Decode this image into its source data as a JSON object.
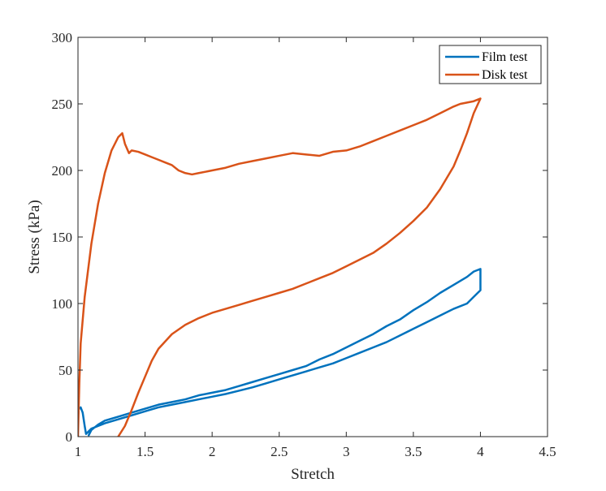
{
  "chart_data": {
    "type": "line",
    "title": "",
    "xlabel": "Stretch",
    "ylabel": "Stress (kPa)",
    "xlim": [
      1,
      4.5
    ],
    "ylim": [
      0,
      300
    ],
    "grid": false,
    "legend_position": "top-right",
    "xticks": [
      1,
      1.5,
      2,
      2.5,
      3,
      3.5,
      4,
      4.5
    ],
    "xtick_labels": [
      "1",
      "1.5",
      "2",
      "2.5",
      "3",
      "3.5",
      "4",
      "4.5"
    ],
    "yticks": [
      0,
      50,
      100,
      150,
      200,
      250,
      300
    ],
    "ytick_labels": [
      "0",
      "50",
      "100",
      "150",
      "200",
      "250",
      "300"
    ],
    "series": [
      {
        "name": "Film test",
        "color": "#0072BD",
        "x": [
          1.0,
          1.02,
          1.035,
          1.05,
          1.06,
          1.08,
          1.1,
          1.15,
          1.2,
          1.3,
          1.4,
          1.5,
          1.6,
          1.7,
          1.8,
          1.9,
          2.0,
          2.1,
          2.2,
          2.3,
          2.4,
          2.5,
          2.6,
          2.7,
          2.8,
          2.9,
          3.0,
          3.1,
          3.2,
          3.3,
          3.4,
          3.5,
          3.6,
          3.7,
          3.8,
          3.9,
          3.95,
          4.0,
          4.0,
          3.95,
          3.9,
          3.8,
          3.7,
          3.6,
          3.5,
          3.4,
          3.3,
          3.2,
          3.1,
          3.0,
          2.9,
          2.8,
          2.7,
          2.6,
          2.5,
          2.4,
          2.3,
          2.2,
          2.1,
          2.0,
          1.9,
          1.8,
          1.7,
          1.6,
          1.5,
          1.4,
          1.3,
          1.2,
          1.15,
          1.1,
          1.08
        ],
        "y": [
          20,
          22,
          18,
          8,
          2,
          4,
          6,
          8,
          10,
          13,
          16,
          19,
          22,
          24,
          26,
          28,
          30,
          32,
          34.5,
          37,
          40,
          43,
          46,
          49,
          52,
          55,
          59,
          63,
          67,
          71,
          76,
          81,
          86,
          91,
          96,
          100,
          105,
          110,
          126,
          124,
          120,
          114,
          108,
          101,
          95,
          88,
          83,
          77,
          72,
          67,
          62,
          58,
          53,
          50,
          47,
          44,
          41,
          38,
          35,
          33,
          31,
          28,
          26,
          24,
          21,
          18,
          15,
          12,
          9,
          5,
          1
        ]
      },
      {
        "name": "Disk test",
        "color": "#D95319",
        "x": [
          1.0,
          1.01,
          1.02,
          1.05,
          1.1,
          1.15,
          1.2,
          1.25,
          1.3,
          1.33,
          1.35,
          1.38,
          1.4,
          1.45,
          1.5,
          1.55,
          1.6,
          1.65,
          1.7,
          1.75,
          1.8,
          1.85,
          1.9,
          2.0,
          2.1,
          2.2,
          2.3,
          2.4,
          2.5,
          2.6,
          2.7,
          2.8,
          2.9,
          3.0,
          3.1,
          3.2,
          3.3,
          3.4,
          3.5,
          3.6,
          3.7,
          3.8,
          3.85,
          3.9,
          3.95,
          4.0,
          4.0,
          3.95,
          3.9,
          3.85,
          3.8,
          3.7,
          3.6,
          3.5,
          3.4,
          3.3,
          3.2,
          3.1,
          3.0,
          2.9,
          2.8,
          2.7,
          2.6,
          2.5,
          2.4,
          2.3,
          2.2,
          2.1,
          2.0,
          1.9,
          1.8,
          1.7,
          1.6,
          1.55,
          1.5,
          1.45,
          1.4,
          1.35,
          1.3,
          1.27,
          1.25
        ],
        "y": [
          0,
          40,
          70,
          105,
          145,
          175,
          198,
          215,
          225,
          228,
          220,
          213,
          215,
          214,
          212,
          210,
          208,
          206,
          204,
          200,
          198,
          197,
          198,
          200,
          202,
          205,
          207,
          209,
          211,
          213,
          212,
          211,
          214,
          215,
          218,
          222,
          226,
          230,
          234,
          238,
          243,
          248,
          250,
          251,
          252,
          254,
          254,
          243,
          228,
          215,
          203,
          186,
          172,
          162,
          153,
          145,
          138,
          133,
          128,
          123,
          119,
          115,
          111,
          108,
          105,
          102,
          99,
          96,
          93,
          89,
          84,
          77,
          66,
          57,
          45,
          33,
          20,
          8,
          0,
          -3,
          -5
        ]
      }
    ]
  }
}
